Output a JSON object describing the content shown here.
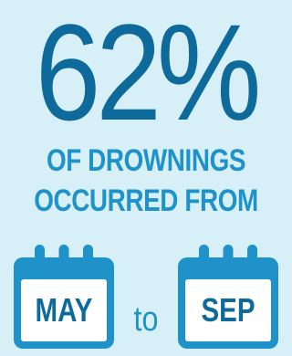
{
  "headline": {
    "stat": "62%",
    "line1": "OF DROWNINGS",
    "line2": "OCCURRED FROM"
  },
  "range": {
    "start": "MAY",
    "connector": "to",
    "end": "SEP"
  },
  "icons": {
    "calendar": "calendar-icon"
  },
  "colors": {
    "background": "#d7eff7",
    "stat": "#0e6a9a",
    "subtitle": "#1e92c9",
    "calendar_frame": "#1e92c9",
    "calendar_face": "#ffffff",
    "calendar_label": "#0e6a9a",
    "connector": "#1e92c9"
  }
}
